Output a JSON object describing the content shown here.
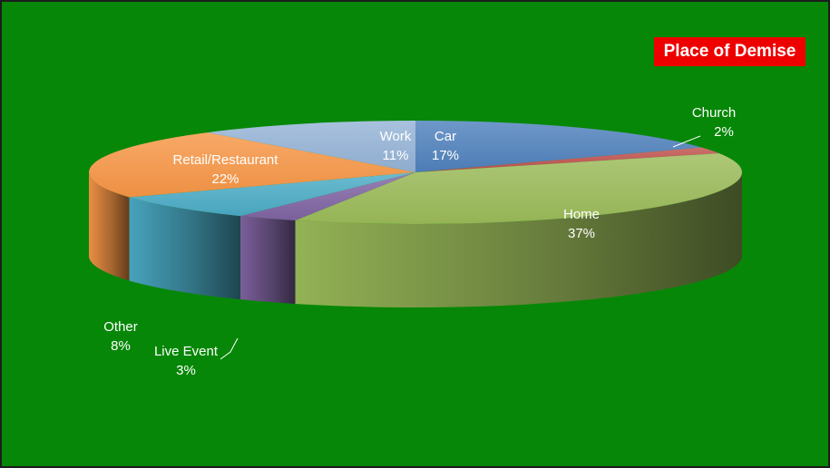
{
  "chart_data": {
    "type": "pie",
    "title": "Place of Demise",
    "slices": [
      {
        "name": "Car",
        "value": 17,
        "label": "17%",
        "color": "#4f81bd"
      },
      {
        "name": "Church",
        "value": 2,
        "label": "2%",
        "color": "#c0504d"
      },
      {
        "name": "Home",
        "value": 37,
        "label": "37%",
        "color": "#9bbb59"
      },
      {
        "name": "Live Event",
        "value": 3,
        "label": "3%",
        "color": "#8064a2"
      },
      {
        "name": "Other",
        "value": 8,
        "label": "8%",
        "color": "#4bacc6"
      },
      {
        "name": "Retail/Restaurant",
        "value": 22,
        "label": "22%",
        "color": "#f79646"
      },
      {
        "name": "Work",
        "value": 11,
        "label": "11%",
        "color": "#95b3d7"
      }
    ],
    "style": "3d-pie",
    "legend": "none"
  },
  "colors": {
    "background": "#078707",
    "title_background": "#ee0000"
  }
}
